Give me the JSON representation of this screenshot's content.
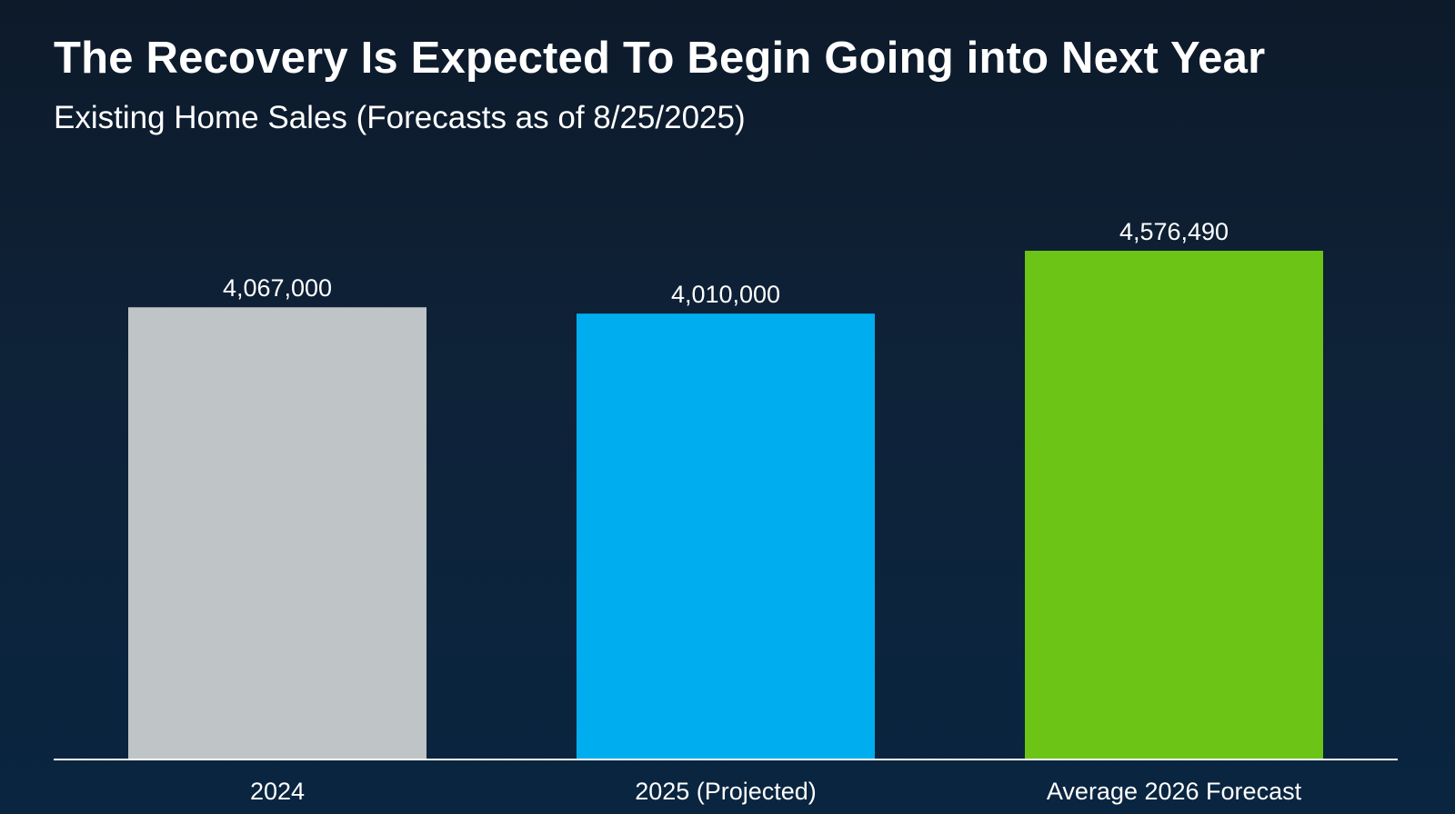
{
  "chart_data": {
    "type": "bar",
    "title": "The Recovery Is Expected To Begin Going into Next Year",
    "subtitle": "Existing Home Sales (Forecasts as of 8/25/2025)",
    "categories": [
      "2024",
      "2025 (Projected)",
      "Average 2026 Forecast"
    ],
    "values": [
      4067000,
      4010000,
      4576490
    ],
    "value_labels": [
      "4,067,000",
      "4,010,000",
      "4,576,490"
    ],
    "colors": [
      "#bfc4c6",
      "#00aeef",
      "#6cc417"
    ],
    "xlabel": "",
    "ylabel": "",
    "ylim": [
      0,
      4576490
    ],
    "grid": false,
    "legend": "none"
  }
}
